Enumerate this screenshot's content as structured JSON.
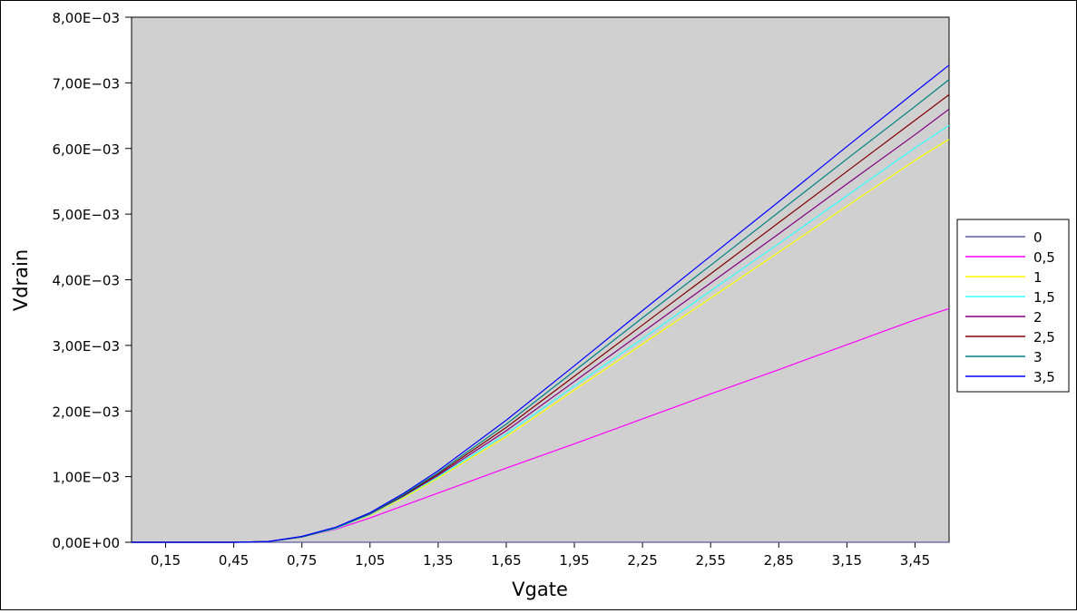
{
  "chart_data": {
    "type": "line",
    "xlabel": "Vgate",
    "ylabel": "Vdrain",
    "xlim": [
      0.0,
      3.6
    ],
    "ylim": [
      0,
      0.008
    ],
    "plot_background": "#d0d0d0",
    "legend_position": "right",
    "x_tick_values": [
      0.15,
      0.45,
      0.75,
      1.05,
      1.35,
      1.65,
      1.95,
      2.25,
      2.55,
      2.85,
      3.15,
      3.45
    ],
    "x_tick_labels": [
      "0,15",
      "0,45",
      "0,75",
      "1,05",
      "1,35",
      "1,65",
      "1,95",
      "2,25",
      "2,55",
      "2,85",
      "3,15",
      "3,45"
    ],
    "y_tick_values": [
      0,
      0.001,
      0.002,
      0.003,
      0.004,
      0.005,
      0.006,
      0.007,
      0.008
    ],
    "y_tick_labels": [
      "0,00E+00",
      "1,00E−03",
      "2,00E−03",
      "3,00E−03",
      "4,00E−03",
      "5,00E−03",
      "6,00E−03",
      "7,00E−03",
      "8,00E−03"
    ],
    "x": [
      0.0,
      0.15,
      0.3,
      0.45,
      0.6,
      0.75,
      0.9,
      1.05,
      1.2,
      1.35,
      1.65,
      1.95,
      2.25,
      2.55,
      2.85,
      3.15,
      3.45,
      3.6
    ],
    "series": [
      {
        "name": "0",
        "color": "#5a5a9e",
        "values": [
          0,
          0,
          0,
          0,
          0,
          0,
          0,
          0,
          0,
          0,
          0,
          0,
          0,
          0,
          0,
          0,
          0,
          0
        ]
      },
      {
        "name": "0,5",
        "color": "#ff00ff",
        "values": [
          0,
          0,
          0,
          0,
          1e-05,
          8e-05,
          0.0002,
          0.00037,
          0.00056,
          0.00075,
          0.00113,
          0.0015,
          0.00188,
          0.00226,
          0.00263,
          0.00301,
          0.00339,
          0.00356
        ]
      },
      {
        "name": "1",
        "color": "#ffff00",
        "values": [
          0,
          0,
          0,
          0,
          1e-05,
          8e-05,
          0.00021,
          0.00041,
          0.00068,
          0.00098,
          0.00161,
          0.00232,
          0.00302,
          0.00372,
          0.00442,
          0.00512,
          0.00582,
          0.00614
        ]
      },
      {
        "name": "1,5",
        "color": "#33ffff",
        "values": [
          0,
          0,
          0,
          0,
          1e-05,
          8e-05,
          0.00021,
          0.00042,
          0.0007,
          0.001,
          0.00165,
          0.00238,
          0.0031,
          0.00383,
          0.00455,
          0.00528,
          0.00601,
          0.00635
        ]
      },
      {
        "name": "2",
        "color": "#800080",
        "values": [
          0,
          0,
          0,
          0,
          1e-05,
          8e-05,
          0.00022,
          0.00043,
          0.00071,
          0.00102,
          0.0017,
          0.00245,
          0.0032,
          0.00395,
          0.0047,
          0.00546,
          0.00621,
          0.0066
        ]
      },
      {
        "name": "2,5",
        "color": "#800000",
        "values": [
          0,
          0,
          0,
          0,
          1e-05,
          8e-05,
          0.00022,
          0.00044,
          0.00072,
          0.00104,
          0.00175,
          0.00253,
          0.00331,
          0.00409,
          0.00487,
          0.00565,
          0.00643,
          0.00682
        ]
      },
      {
        "name": "3",
        "color": "#008080",
        "values": [
          0,
          0,
          0,
          0,
          1e-05,
          8e-05,
          0.00022,
          0.00044,
          0.00073,
          0.00106,
          0.0018,
          0.00261,
          0.00342,
          0.00422,
          0.00503,
          0.00584,
          0.00664,
          0.00705
        ]
      },
      {
        "name": "3,5",
        "color": "#0000ff",
        "values": [
          0,
          0,
          0,
          0,
          1e-05,
          9e-05,
          0.00023,
          0.00045,
          0.00075,
          0.00109,
          0.00186,
          0.00269,
          0.00353,
          0.00436,
          0.00519,
          0.00603,
          0.00686,
          0.00727
        ]
      }
    ]
  }
}
